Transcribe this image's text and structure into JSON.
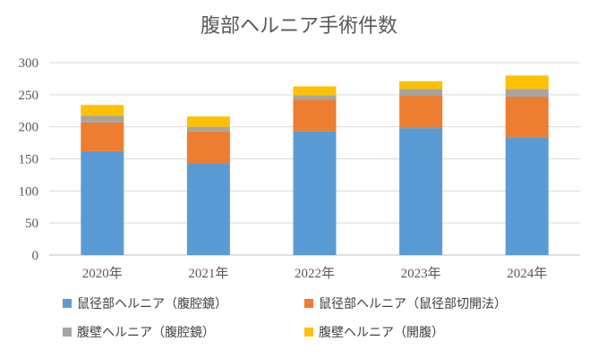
{
  "chart_data": {
    "type": "bar",
    "stacked": true,
    "title": "腹部ヘルニア手術件数",
    "categories": [
      "2020年",
      "2021年",
      "2022年",
      "2023年",
      "2024年"
    ],
    "ylim": [
      0,
      300
    ],
    "yticks": [
      0,
      50,
      100,
      150,
      200,
      250,
      300
    ],
    "grid": true,
    "legend_position": "bottom",
    "series": [
      {
        "name": "鼠径部ヘルニア（腹腔鏡）",
        "color": "#5b9bd5",
        "values": [
          162,
          143,
          193,
          198,
          184
        ]
      },
      {
        "name": "鼠径部ヘルニア（鼠径部切開法）",
        "color": "#ed7d31",
        "values": [
          45,
          50,
          49,
          51,
          63
        ]
      },
      {
        "name": "腹壁ヘルニア（腹腔鏡）",
        "color": "#a5a5a5",
        "values": [
          10,
          7,
          7,
          10,
          12
        ]
      },
      {
        "name": "腹壁ヘルニア（開腹）",
        "color": "#ffc000",
        "values": [
          17,
          16,
          14,
          12,
          21
        ]
      }
    ]
  }
}
